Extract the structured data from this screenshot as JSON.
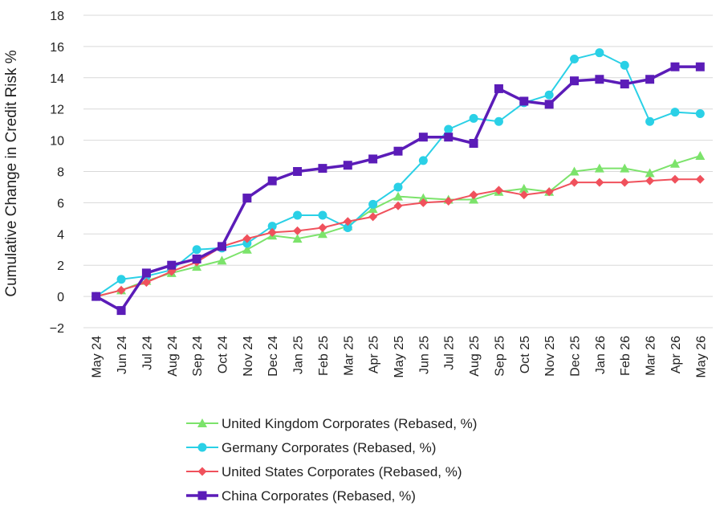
{
  "chart_data": {
    "type": "line",
    "title": "",
    "xlabel": "",
    "ylabel": "Cumulative Change in Credit Risk %",
    "ylim": [
      -2,
      18
    ],
    "yticks": [
      "18",
      "16",
      "14",
      "12",
      "10",
      "8",
      "6",
      "4",
      "2",
      "0",
      "−2"
    ],
    "ytick_values": [
      18,
      16,
      14,
      12,
      10,
      8,
      6,
      4,
      2,
      0,
      -2
    ],
    "grid": "horizontal",
    "legend_position": "bottom",
    "categories": [
      "May 24",
      "Jun 24",
      "Jul 24",
      "Aug 24",
      "Sep 24",
      "Oct 24",
      "Nov 24",
      "Dec 24",
      "Jan 25",
      "Feb 25",
      "Mar 25",
      "Apr 25",
      "May 25",
      "Jun 25",
      "Jul 25",
      "Aug 25",
      "Sep 25",
      "Oct 25",
      "Nov 25",
      "Dec 25",
      "Jan 26",
      "Feb 26",
      "Mar 26",
      "Apr 26",
      "May 26"
    ],
    "series": [
      {
        "name": "United Kingdom Corporates (Rebased, %)",
        "color": "#7ce36b",
        "marker": "triangle",
        "values": [
          0,
          0.4,
          1.0,
          1.5,
          1.9,
          2.3,
          3.0,
          3.9,
          3.7,
          4.0,
          4.5,
          5.6,
          6.4,
          6.3,
          6.2,
          6.2,
          6.7,
          6.9,
          6.7,
          8.0,
          8.2,
          8.2,
          7.9,
          8.5,
          9.0
        ]
      },
      {
        "name": "Germany Corporates (Rebased, %)",
        "color": "#2ad0e6",
        "marker": "circle",
        "values": [
          0,
          1.1,
          1.3,
          1.7,
          3.0,
          3.1,
          3.4,
          4.5,
          5.2,
          5.2,
          4.4,
          5.9,
          7.0,
          8.7,
          10.7,
          11.4,
          11.2,
          12.4,
          12.9,
          15.2,
          15.6,
          14.8,
          11.2,
          11.8,
          11.7
        ]
      },
      {
        "name": "United States Corporates (Rebased, %)",
        "color": "#f0515c",
        "marker": "diamond",
        "values": [
          0,
          0.4,
          0.9,
          1.6,
          2.2,
          3.2,
          3.7,
          4.1,
          4.2,
          4.4,
          4.8,
          5.1,
          5.8,
          6.0,
          6.1,
          6.5,
          6.8,
          6.5,
          6.7,
          7.3,
          7.3,
          7.3,
          7.4,
          7.5,
          7.5
        ]
      },
      {
        "name": "China Corporates (Rebased, %)",
        "color": "#5b1cb8",
        "marker": "square",
        "values": [
          0,
          -0.9,
          1.5,
          2.0,
          2.4,
          3.2,
          6.3,
          7.4,
          8.0,
          8.2,
          8.4,
          8.8,
          9.3,
          10.2,
          10.2,
          9.8,
          13.3,
          12.5,
          12.3,
          13.8,
          13.9,
          13.6,
          13.9,
          14.7,
          14.7
        ]
      }
    ]
  }
}
